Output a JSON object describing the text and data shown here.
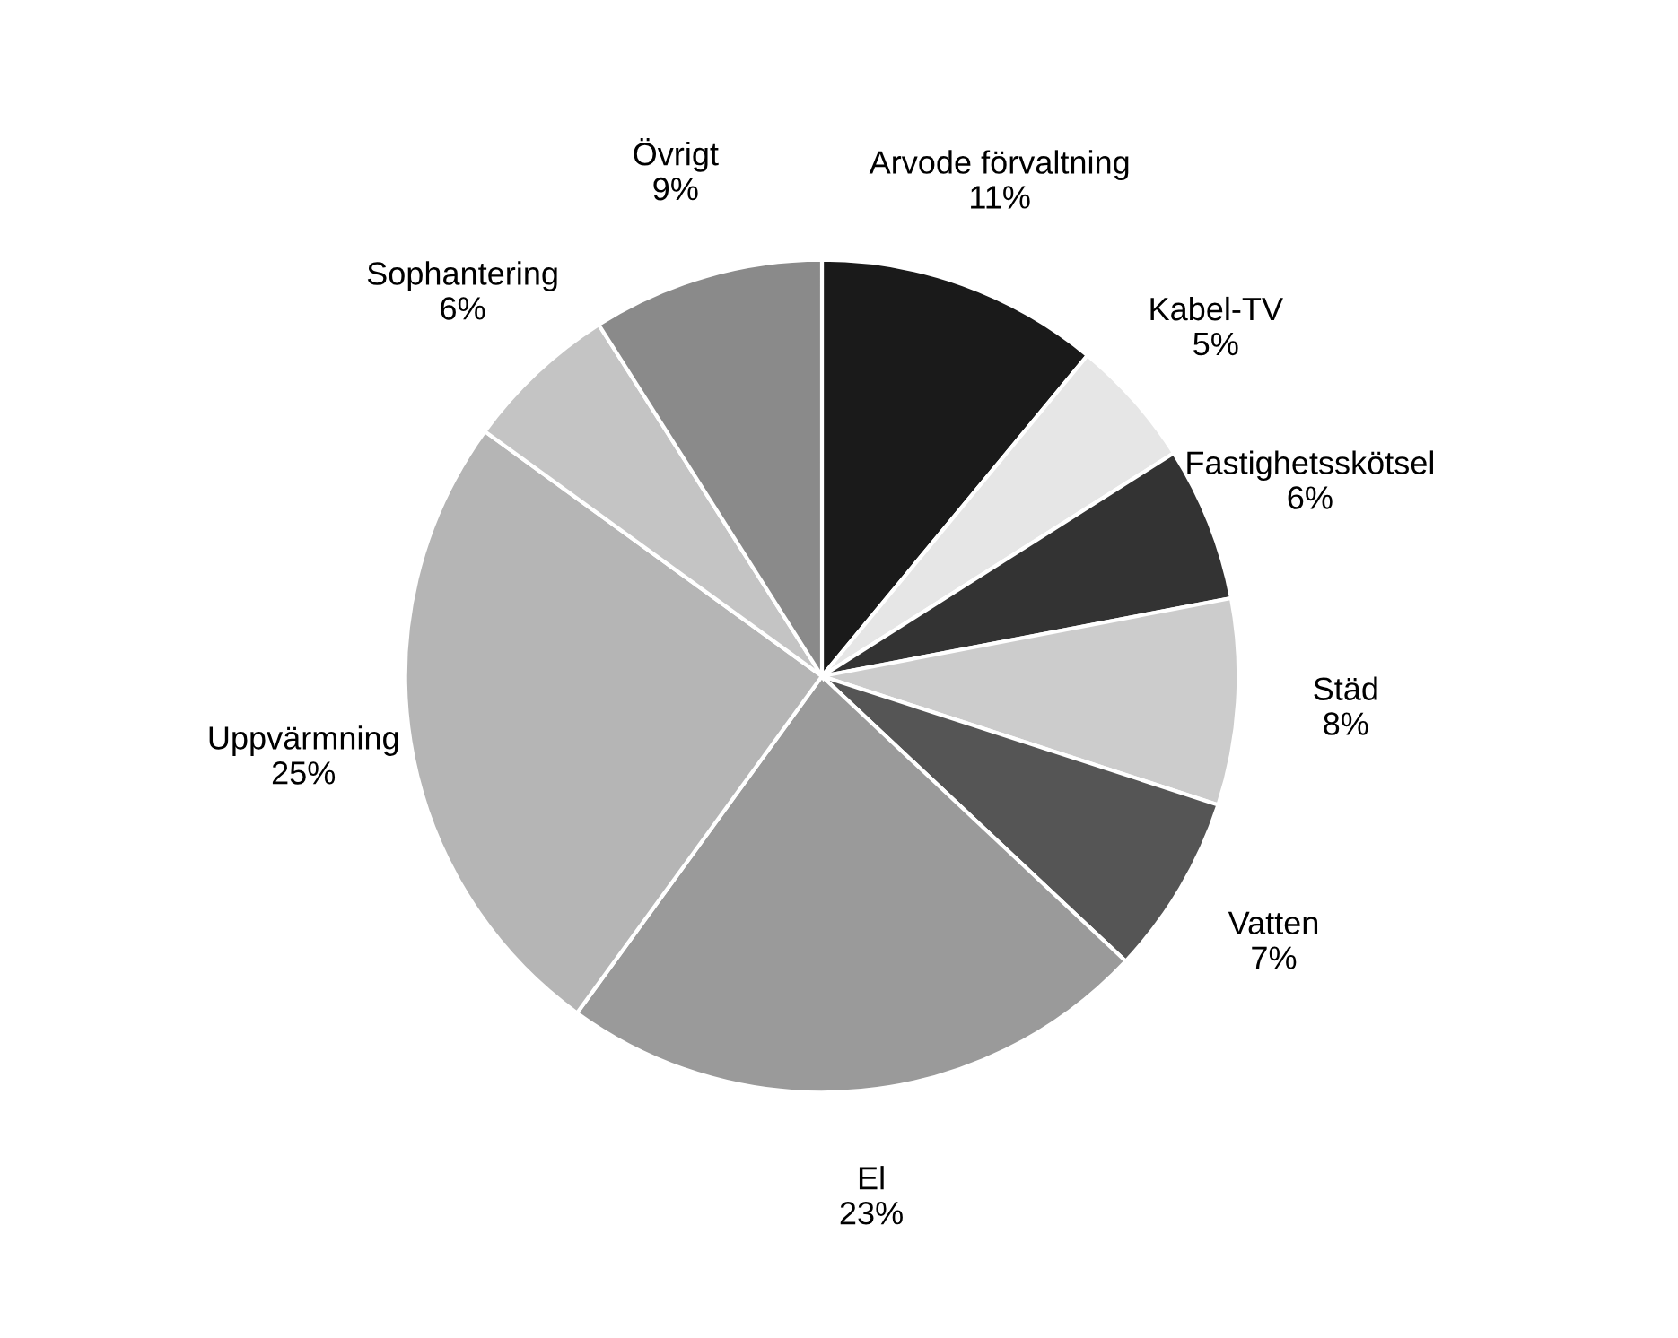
{
  "chart_data": {
    "type": "pie",
    "categories": [
      "Arvode förvaltning",
      "Kabel-TV",
      "Fastighetsskötsel",
      "Städ",
      "Vatten",
      "El",
      "Uppvärmning",
      "Sophantering",
      "Övrigt"
    ],
    "values": [
      11,
      5,
      6,
      8,
      7,
      23,
      25,
      6,
      9
    ],
    "value_labels": [
      "11%",
      "5%",
      "6%",
      "8%",
      "7%",
      "23%",
      "25%",
      "6%",
      "9%"
    ],
    "colors": [
      "#1a1a1a",
      "#e6e6e6",
      "#333333",
      "#cccccc",
      "#555555",
      "#9a9a9a",
      "#b5b5b5",
      "#c4c4c4",
      "#8a8a8a"
    ],
    "legend": false
  }
}
